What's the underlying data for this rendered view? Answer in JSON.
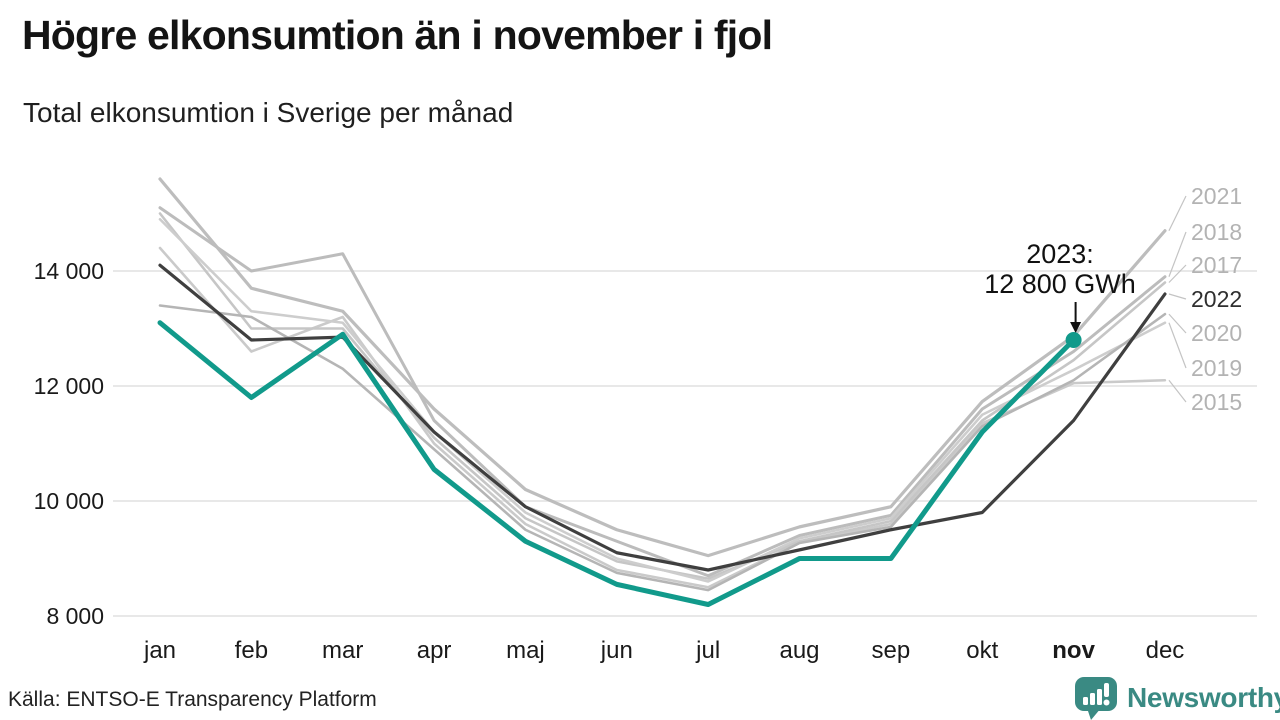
{
  "header": {
    "title": "Högre elkonsumtion än i november i fjol",
    "subtitle": "Total elkonsumtion i Sverige per månad"
  },
  "footer": {
    "source": "Källa: ENTSO-E Transparency Platform",
    "brand": "Newsworthy"
  },
  "colors": {
    "accent": "#119a8b",
    "line_2022": "#3f3f3f",
    "grid": "#e8e8e8",
    "axis_text": "#1a1a1a",
    "annotation_text": "#111111",
    "leader": "#c4c4c4",
    "year_label_gray": "#b3b3b3",
    "logo": "#3a8a83"
  },
  "chart_data": {
    "type": "line",
    "title": "Högre elkonsumtion än i november i fjol",
    "subtitle": "Total elkonsumtion i Sverige per månad",
    "unit": "GWh",
    "x_categories": [
      "jan",
      "feb",
      "mar",
      "apr",
      "maj",
      "jun",
      "jul",
      "aug",
      "sep",
      "okt",
      "nov",
      "dec"
    ],
    "x_bold": "nov",
    "ylim": [
      7800,
      15800
    ],
    "yticks": [
      {
        "value": 8000,
        "label": "8 000"
      },
      {
        "value": 10000,
        "label": "10 000"
      },
      {
        "value": 12000,
        "label": "12 000"
      },
      {
        "value": 14000,
        "label": "14 000"
      }
    ],
    "grid": true,
    "legend_position": "right-edge-labels",
    "series": [
      {
        "name": "2015",
        "color": "#cacaca",
        "label_color": "#b3b3b3",
        "width": 2.6,
        "values": [
          14400,
          12600,
          13200,
          11000,
          9600,
          8800,
          8500,
          9280,
          9600,
          11350,
          12050,
          12100
        ]
      },
      {
        "name": "2017",
        "color": "#c6c6c6",
        "label_color": "#b3b3b3",
        "width": 2.6,
        "values": [
          15000,
          13000,
          13000,
          11100,
          9700,
          8950,
          8650,
          9300,
          9650,
          11400,
          12450,
          13800
        ]
      },
      {
        "name": "2018",
        "color": "#bcbcbc",
        "label_color": "#b3b3b3",
        "width": 3,
        "values": [
          15100,
          14000,
          14300,
          11400,
          9900,
          9300,
          8700,
          9400,
          9750,
          11600,
          12600,
          13900
        ]
      },
      {
        "name": "2019",
        "color": "#cdcdcd",
        "label_color": "#b3b3b3",
        "width": 2.6,
        "values": [
          14900,
          13300,
          13100,
          11200,
          9800,
          9000,
          8600,
          9350,
          9700,
          11500,
          12280,
          13100
        ]
      },
      {
        "name": "2020",
        "color": "#b5b5b5",
        "label_color": "#b3b3b3",
        "width": 2.6,
        "values": [
          13400,
          13200,
          12300,
          10900,
          9500,
          8750,
          8450,
          9270,
          9550,
          11300,
          12100,
          13250
        ]
      },
      {
        "name": "2021",
        "color": "#bdbdbd",
        "label_color": "#b3b3b3",
        "width": 3.2,
        "values": [
          15600,
          13700,
          13300,
          11600,
          10200,
          9500,
          9050,
          9550,
          9900,
          11730,
          12870,
          14700
        ]
      },
      {
        "name": "2022",
        "color": "#3f3f3f",
        "label_color": "#2f2f2f",
        "width": 3.2,
        "values": [
          14100,
          12800,
          12850,
          11200,
          9900,
          9100,
          8800,
          9150,
          9500,
          9800,
          11400,
          13600
        ]
      },
      {
        "name": "2023",
        "color": "#119a8b",
        "label_color": "#119a8b",
        "width": 5,
        "values": [
          13100,
          11800,
          12900,
          10550,
          9300,
          8550,
          8200,
          9000,
          9000,
          11200,
          12800,
          null
        ]
      }
    ],
    "annotation": {
      "text_line1": "2023:",
      "text_line2": "12 800 GWh",
      "month": "nov",
      "value": 12800
    }
  }
}
